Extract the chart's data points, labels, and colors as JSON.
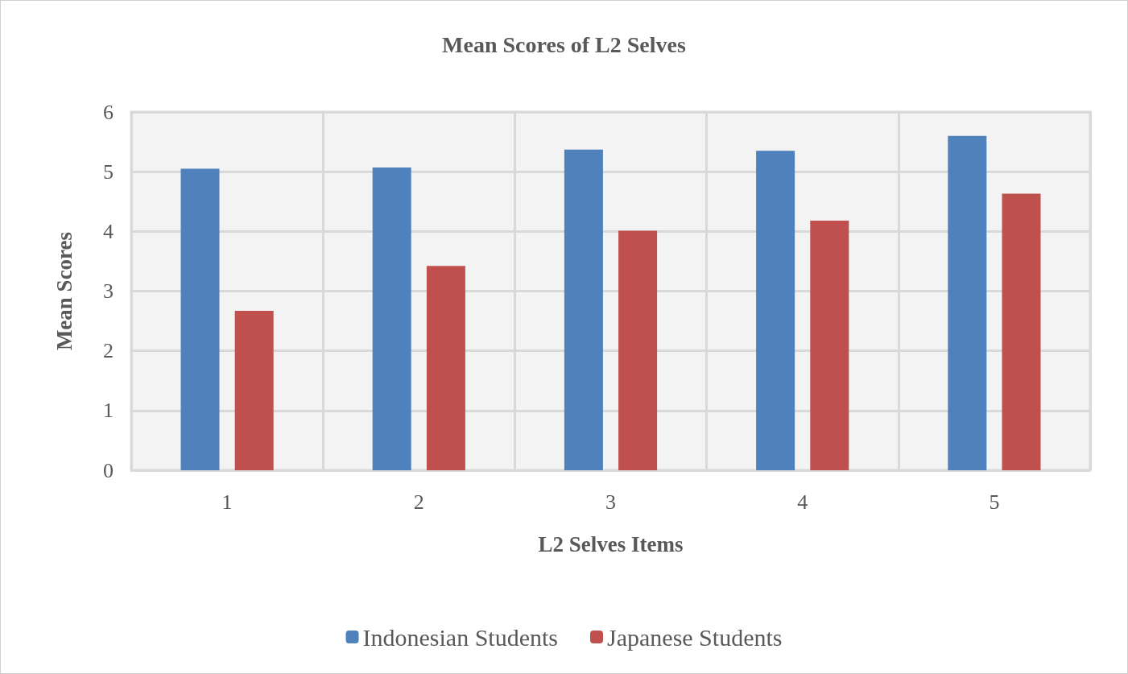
{
  "chart_data": {
    "type": "bar",
    "title": "Mean Scores of L2 Selves",
    "xlabel": "L2 Selves Items",
    "ylabel": "Mean Scores",
    "categories": [
      "1",
      "2",
      "3",
      "4",
      "5"
    ],
    "series": [
      {
        "name": "Indonesian Students",
        "color": "#4f81bd",
        "values": [
          5.05,
          5.07,
          5.37,
          5.35,
          5.6
        ]
      },
      {
        "name": "Japanese Students",
        "color": "#c0504d",
        "values": [
          2.67,
          3.42,
          4.01,
          4.18,
          4.63
        ]
      }
    ],
    "ylim": [
      0,
      6
    ],
    "yticks": [
      0,
      1,
      2,
      3,
      4,
      5,
      6
    ],
    "grid": true,
    "legend": "bottom"
  }
}
